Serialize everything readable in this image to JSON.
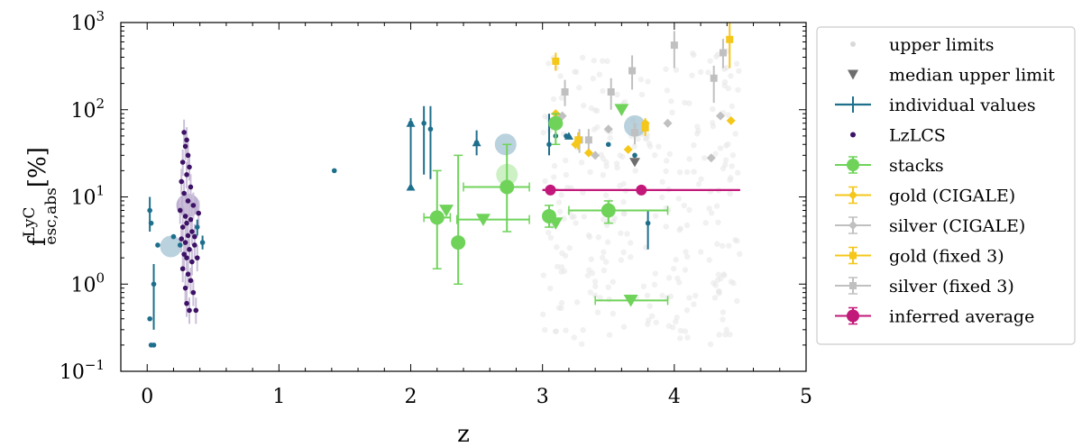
{
  "chart_data": {
    "type": "scatter",
    "title": "",
    "xlabel": "z",
    "ylabel_main": "f",
    "ylabel_sup": "LyC",
    "ylabel_sub": "esc,abs",
    "ylabel_unit": "[%]",
    "xlim": [
      -0.2,
      5.0
    ],
    "ylim": [
      0.1,
      1000
    ],
    "yscale": "log",
    "xticks": [
      0,
      1,
      2,
      3,
      4,
      5
    ],
    "xtick_labels": [
      "0",
      "1",
      "2",
      "3",
      "4",
      "5"
    ],
    "yticks": [
      0.1,
      1,
      10,
      100,
      1000
    ],
    "ytick_labels": [
      {
        "base": "10",
        "exp": "−1"
      },
      {
        "base": "10",
        "exp": "0"
      },
      {
        "base": "10",
        "exp": "1"
      },
      {
        "base": "10",
        "exp": "2"
      },
      {
        "base": "10",
        "exp": "3"
      }
    ],
    "legend_position": "outside-right",
    "legend": [
      {
        "label": "upper limits",
        "marker": "faint-dot",
        "color": "#d9d9d9"
      },
      {
        "label": "median upper limit",
        "marker": "triangle-down",
        "color": "#6e6e6e"
      },
      {
        "label": "individual values",
        "marker": "errorbar-line",
        "color": "#1e6f8c"
      },
      {
        "label": "LzLCS",
        "marker": "small-dot",
        "color": "#3d1266"
      },
      {
        "label": "stacks",
        "marker": "circle-errorbar",
        "color": "#6fd35a"
      },
      {
        "label": "gold (CIGALE)",
        "marker": "diamond-errorbar",
        "color": "#f5c71a"
      },
      {
        "label": "silver (CIGALE)",
        "marker": "diamond-errorbar",
        "color": "#c0c0c0"
      },
      {
        "label": "gold (fixed 3)",
        "marker": "square-errorbar",
        "color": "#f5c71a"
      },
      {
        "label": "silver (fixed 3)",
        "marker": "square-errorbar",
        "color": "#c0c0c0"
      },
      {
        "label": "inferred average",
        "marker": "circle-errorbar",
        "color": "#c2187a"
      }
    ],
    "series": [
      {
        "name": "individual values",
        "color": "#1e6f8c",
        "points": [
          {
            "x": 0.02,
            "y": 7,
            "ylo": 4,
            "yhi": 10
          },
          {
            "x": 0.03,
            "y": 5
          },
          {
            "x": 0.05,
            "y": 1.0,
            "ylo": 0.3,
            "yhi": 1.7
          },
          {
            "x": 0.02,
            "y": 0.4
          },
          {
            "x": 0.03,
            "y": 0.2
          },
          {
            "x": 0.05,
            "y": 0.2
          },
          {
            "x": 0.08,
            "y": 2.8
          },
          {
            "x": 0.2,
            "y": 3.5
          },
          {
            "x": 0.25,
            "y": 2.8
          },
          {
            "x": 0.42,
            "y": 3.0,
            "ylo": 2.5,
            "yhi": 3.6
          },
          {
            "x": 0.38,
            "y": 4.5,
            "ylo": 3.6,
            "yhi": 5.5
          },
          {
            "x": 1.42,
            "y": 20
          },
          {
            "x": 2.0,
            "y": 70,
            "ylo": 12,
            "yhi": 80
          },
          {
            "x": 2.1,
            "y": 70,
            "ylo": 18,
            "yhi": 110
          },
          {
            "x": 2.15,
            "y": 60,
            "ylo": 16,
            "yhi": 110
          },
          {
            "x": 2.5,
            "y": 42,
            "ylo": 30,
            "yhi": 58
          },
          {
            "x": 3.05,
            "y": 40,
            "ylo": 30,
            "yhi": 90
          },
          {
            "x": 3.1,
            "y": 50
          },
          {
            "x": 3.18,
            "y": 50
          },
          {
            "x": 3.5,
            "y": 40
          },
          {
            "x": 3.7,
            "y": 30
          },
          {
            "x": 3.8,
            "y": 5,
            "ylo": 2.5,
            "yhi": 7
          }
        ],
        "lower_limits": [
          {
            "x": 2.0,
            "y": 13
          },
          {
            "x": 2.0,
            "y": 70
          },
          {
            "x": 2.5,
            "y": 42
          },
          {
            "x": 3.2,
            "y": 50
          }
        ]
      },
      {
        "name": "LzLCS",
        "color": "#3d1266",
        "points": [
          {
            "x": 0.28,
            "y": 55
          },
          {
            "x": 0.3,
            "y": 45
          },
          {
            "x": 0.29,
            "y": 38
          },
          {
            "x": 0.31,
            "y": 30
          },
          {
            "x": 0.27,
            "y": 25
          },
          {
            "x": 0.32,
            "y": 22
          },
          {
            "x": 0.3,
            "y": 18
          },
          {
            "x": 0.26,
            "y": 15
          },
          {
            "x": 0.33,
            "y": 13
          },
          {
            "x": 0.28,
            "y": 11
          },
          {
            "x": 0.31,
            "y": 9
          },
          {
            "x": 0.35,
            "y": 8
          },
          {
            "x": 0.25,
            "y": 7
          },
          {
            "x": 0.29,
            "y": 6
          },
          {
            "x": 0.33,
            "y": 5.5
          },
          {
            "x": 0.3,
            "y": 5
          },
          {
            "x": 0.27,
            "y": 4.5
          },
          {
            "x": 0.34,
            "y": 4
          },
          {
            "x": 0.31,
            "y": 3.6
          },
          {
            "x": 0.26,
            "y": 3.3
          },
          {
            "x": 0.29,
            "y": 3
          },
          {
            "x": 0.36,
            "y": 2.8
          },
          {
            "x": 0.32,
            "y": 2.5
          },
          {
            "x": 0.28,
            "y": 2.2
          },
          {
            "x": 0.3,
            "y": 2.0
          },
          {
            "x": 0.34,
            "y": 1.8
          },
          {
            "x": 0.27,
            "y": 1.5
          },
          {
            "x": 0.31,
            "y": 1.3
          },
          {
            "x": 0.33,
            "y": 1.1
          },
          {
            "x": 0.29,
            "y": 0.9
          },
          {
            "x": 0.35,
            "y": 0.8
          },
          {
            "x": 0.3,
            "y": 0.6
          },
          {
            "x": 0.37,
            "y": 0.5
          },
          {
            "x": 0.32,
            "y": 0.5
          },
          {
            "x": 0.38,
            "y": 2.0
          },
          {
            "x": 0.36,
            "y": 3.5
          },
          {
            "x": 0.39,
            "y": 6.5
          }
        ]
      },
      {
        "name": "LzLCS average",
        "color": "#a38fbd",
        "points": [
          {
            "x": 0.31,
            "y": 8
          }
        ]
      },
      {
        "name": "individual average",
        "color": "#9dbfd0",
        "points": [
          {
            "x": 0.18,
            "y": 2.7
          },
          {
            "x": 2.72,
            "y": 40
          },
          {
            "x": 3.7,
            "y": 65
          }
        ]
      },
      {
        "name": "stacks",
        "color": "#6fd35a",
        "points": [
          {
            "x": 2.2,
            "y": 5.8,
            "ylo": 1.5,
            "yhi": 20,
            "xlo": 2.1,
            "xhi": 2.3
          },
          {
            "x": 2.36,
            "y": 3.0,
            "ylo": 1.0,
            "yhi": 30
          },
          {
            "x": 2.73,
            "y": 13,
            "ylo": 4,
            "yhi": 40,
            "xlo": 2.4,
            "xhi": 2.9
          },
          {
            "x": 3.05,
            "y": 6.0,
            "ylo": 4.5,
            "yhi": 8
          },
          {
            "x": 3.1,
            "y": 70,
            "ylo": 40,
            "yhi": 90
          },
          {
            "x": 3.5,
            "y": 7.0,
            "ylo": 5.0,
            "yhi": 9.0,
            "xlo": 3.2,
            "xhi": 3.95
          }
        ],
        "upper_limits": [
          {
            "x": 2.27,
            "y": 7
          },
          {
            "x": 2.55,
            "y": 5.5,
            "xlo": 2.35,
            "xhi": 2.9
          },
          {
            "x": 3.1,
            "y": 5.0
          },
          {
            "x": 3.6,
            "y": 100
          },
          {
            "x": 3.67,
            "y": 0.65,
            "xlo": 3.4,
            "xhi": 3.95
          }
        ],
        "faded_circle": {
          "x": 2.73,
          "y": 18
        }
      },
      {
        "name": "gold (CIGALE)",
        "color": "#f5c71a",
        "points": [
          {
            "x": 3.1,
            "y": 90
          },
          {
            "x": 3.65,
            "y": 35
          },
          {
            "x": 3.78,
            "y": 70
          },
          {
            "x": 4.43,
            "y": 75
          },
          {
            "x": 3.25,
            "y": 40
          },
          {
            "x": 3.35,
            "y": 32
          }
        ]
      },
      {
        "name": "silver (CIGALE)",
        "color": "#c0c0c0",
        "points": [
          {
            "x": 3.15,
            "y": 85
          },
          {
            "x": 3.5,
            "y": 60
          },
          {
            "x": 3.95,
            "y": 70
          },
          {
            "x": 4.35,
            "y": 85
          },
          {
            "x": 3.4,
            "y": 30
          },
          {
            "x": 4.28,
            "y": 28
          }
        ]
      },
      {
        "name": "gold (fixed 3)",
        "color": "#f5c71a",
        "points": [
          {
            "x": 3.1,
            "y": 360,
            "ylo": 280,
            "yhi": 450
          },
          {
            "x": 3.27,
            "y": 45,
            "ylo": 35,
            "yhi": 55
          },
          {
            "x": 3.78,
            "y": 62,
            "ylo": 50,
            "yhi": 80
          },
          {
            "x": 4.42,
            "y": 640,
            "ylo": 300,
            "yhi": 1000
          }
        ]
      },
      {
        "name": "silver (fixed 3)",
        "color": "#c0c0c0",
        "points": [
          {
            "x": 3.17,
            "y": 160,
            "ylo": 110,
            "yhi": 220
          },
          {
            "x": 3.35,
            "y": 45,
            "ylo": 35,
            "yhi": 60
          },
          {
            "x": 3.52,
            "y": 160,
            "ylo": 100,
            "yhi": 230
          },
          {
            "x": 3.68,
            "y": 280,
            "ylo": 170,
            "yhi": 420
          },
          {
            "x": 3.7,
            "y": 55,
            "ylo": 40,
            "yhi": 70
          },
          {
            "x": 4.0,
            "y": 550,
            "ylo": 300,
            "yhi": 800
          },
          {
            "x": 4.3,
            "y": 230,
            "ylo": 120,
            "yhi": 320
          },
          {
            "x": 4.37,
            "y": 450,
            "ylo": 300,
            "yhi": 650
          },
          {
            "x": 3.28,
            "y": 45,
            "ylo": 32,
            "yhi": 60
          }
        ]
      },
      {
        "name": "median upper limit",
        "color": "#6e6e6e",
        "points": [
          {
            "x": 3.7,
            "y": 25
          }
        ]
      },
      {
        "name": "inferred average",
        "color": "#c2187a",
        "points": [
          {
            "x": 3.06,
            "y": 12,
            "xlo": 3.0,
            "xhi": 3.12
          },
          {
            "x": 3.75,
            "y": 12,
            "xlo": 3.0,
            "xhi": 4.5
          }
        ]
      }
    ],
    "upper_limits_cloud": {
      "color": "#e6e6e6",
      "x_range": [
        3.0,
        4.5
      ],
      "y_range": [
        0.2,
        500
      ],
      "count": 300
    }
  }
}
